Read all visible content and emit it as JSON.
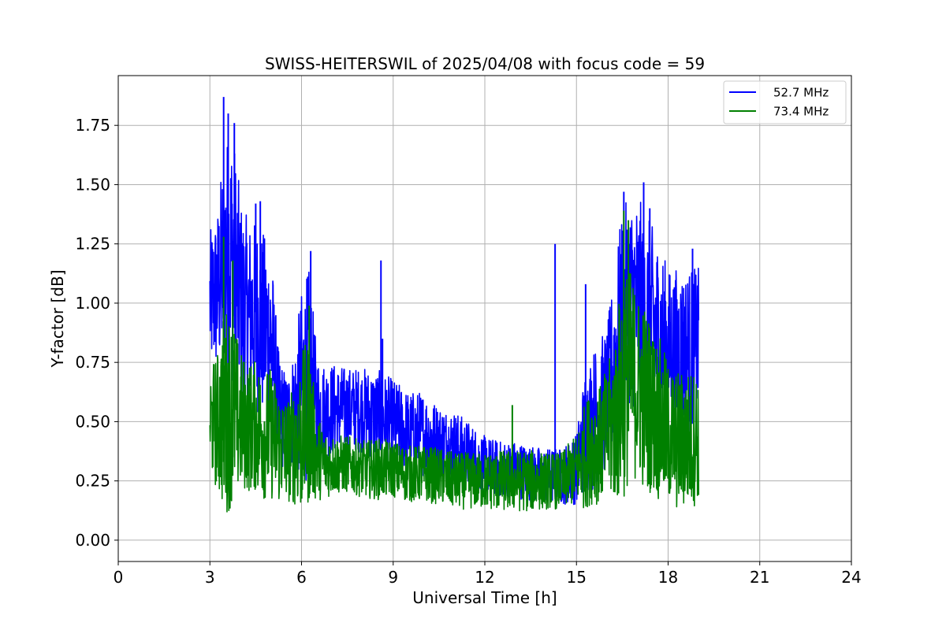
{
  "chart_data": {
    "type": "line",
    "title": "SWISS-HEITERSWIL of 2025/04/08 with focus code = 59",
    "xlabel": "Universal Time [h]",
    "ylabel": "Y-factor [dB]",
    "xlim": [
      0,
      24
    ],
    "ylim": [
      -0.09,
      1.96
    ],
    "xticks": [
      0,
      3,
      6,
      9,
      12,
      15,
      18,
      21,
      24
    ],
    "xtick_labels": [
      "0",
      "3",
      "6",
      "9",
      "12",
      "15",
      "18",
      "21",
      "24"
    ],
    "yticks": [
      0.0,
      0.25,
      0.5,
      0.75,
      1.0,
      1.25,
      1.5,
      1.75
    ],
    "ytick_labels": [
      "0.00",
      "0.25",
      "0.50",
      "0.75",
      "1.00",
      "1.25",
      "1.50",
      "1.75"
    ],
    "grid": true,
    "legend_position": "top-right",
    "series": [
      {
        "name": "52.7 MHz",
        "color": "#0000ff",
        "x": [
          3.0,
          3.25,
          3.5,
          3.75,
          4.0,
          4.25,
          4.5,
          4.75,
          5.0,
          5.25,
          5.5,
          5.75,
          6.0,
          6.25,
          6.5,
          6.75,
          7.0,
          7.5,
          8.0,
          8.5,
          9.0,
          9.5,
          10.0,
          10.5,
          11.0,
          11.5,
          12.0,
          12.5,
          13.0,
          13.5,
          14.0,
          14.5,
          15.0,
          15.25,
          15.5,
          15.75,
          16.0,
          16.25,
          16.5,
          16.75,
          17.0,
          17.25,
          17.5,
          17.75,
          18.0,
          18.25,
          18.5,
          18.75,
          19.0
        ],
        "center": [
          1.0,
          1.05,
          1.2,
          1.2,
          1.0,
          0.95,
          0.95,
          0.9,
          0.85,
          0.55,
          0.5,
          0.55,
          0.65,
          0.7,
          0.55,
          0.55,
          0.55,
          0.55,
          0.55,
          0.52,
          0.5,
          0.45,
          0.45,
          0.42,
          0.4,
          0.35,
          0.32,
          0.3,
          0.3,
          0.28,
          0.27,
          0.27,
          0.3,
          0.45,
          0.5,
          0.55,
          0.6,
          0.75,
          0.95,
          1.0,
          1.0,
          0.95,
          0.9,
          0.85,
          0.8,
          0.8,
          0.8,
          0.8,
          0.85
        ],
        "spread": [
          0.3,
          0.35,
          0.5,
          0.55,
          0.45,
          0.4,
          0.4,
          0.4,
          0.4,
          0.25,
          0.2,
          0.25,
          0.4,
          0.45,
          0.25,
          0.2,
          0.2,
          0.18,
          0.18,
          0.2,
          0.18,
          0.18,
          0.18,
          0.15,
          0.15,
          0.15,
          0.12,
          0.12,
          0.12,
          0.12,
          0.12,
          0.12,
          0.15,
          0.25,
          0.3,
          0.3,
          0.3,
          0.4,
          0.45,
          0.45,
          0.45,
          0.45,
          0.42,
          0.4,
          0.35,
          0.35,
          0.35,
          0.35,
          0.3
        ],
        "spikes": [
          [
            3.45,
            1.87
          ],
          [
            3.6,
            1.8
          ],
          [
            3.8,
            1.76
          ],
          [
            4.5,
            1.42
          ],
          [
            4.65,
            1.43
          ],
          [
            6.3,
            1.22
          ],
          [
            8.6,
            1.18
          ],
          [
            8.65,
            0.85
          ],
          [
            14.3,
            1.25
          ],
          [
            15.3,
            1.08
          ],
          [
            16.55,
            1.47
          ],
          [
            17.2,
            1.51
          ],
          [
            17.4,
            1.4
          ],
          [
            18.8,
            1.23
          ]
        ]
      },
      {
        "name": "73.4 MHz",
        "color": "#008000",
        "x": [
          3.0,
          3.25,
          3.5,
          3.75,
          4.0,
          4.25,
          4.5,
          4.75,
          5.0,
          5.25,
          5.5,
          5.75,
          6.0,
          6.25,
          6.5,
          6.75,
          7.0,
          7.5,
          8.0,
          8.5,
          9.0,
          9.5,
          10.0,
          10.5,
          11.0,
          11.5,
          12.0,
          12.5,
          13.0,
          13.5,
          14.0,
          14.5,
          15.0,
          15.25,
          15.5,
          15.75,
          16.0,
          16.25,
          16.5,
          16.75,
          17.0,
          17.25,
          17.5,
          17.75,
          18.0,
          18.25,
          18.5,
          18.75,
          19.0
        ],
        "center": [
          0.5,
          0.5,
          0.55,
          0.55,
          0.5,
          0.48,
          0.48,
          0.45,
          0.45,
          0.4,
          0.38,
          0.4,
          0.45,
          0.5,
          0.35,
          0.32,
          0.32,
          0.32,
          0.3,
          0.3,
          0.3,
          0.28,
          0.28,
          0.27,
          0.25,
          0.25,
          0.25,
          0.25,
          0.25,
          0.25,
          0.25,
          0.25,
          0.3,
          0.35,
          0.4,
          0.4,
          0.45,
          0.5,
          0.65,
          0.7,
          0.65,
          0.6,
          0.55,
          0.5,
          0.45,
          0.42,
          0.42,
          0.42,
          0.45
        ],
        "spread": [
          0.22,
          0.3,
          0.45,
          0.4,
          0.3,
          0.28,
          0.28,
          0.28,
          0.28,
          0.25,
          0.22,
          0.25,
          0.35,
          0.35,
          0.18,
          0.15,
          0.13,
          0.12,
          0.12,
          0.13,
          0.12,
          0.12,
          0.12,
          0.12,
          0.12,
          0.12,
          0.12,
          0.13,
          0.13,
          0.13,
          0.12,
          0.12,
          0.15,
          0.22,
          0.25,
          0.25,
          0.28,
          0.35,
          0.5,
          0.45,
          0.4,
          0.4,
          0.35,
          0.35,
          0.3,
          0.3,
          0.3,
          0.3,
          0.28
        ],
        "spikes": [
          [
            3.45,
            1.28
          ],
          [
            3.75,
            1.18
          ],
          [
            6.25,
            0.99
          ],
          [
            12.9,
            0.57
          ],
          [
            16.55,
            1.39
          ],
          [
            16.7,
            1.35
          ]
        ]
      }
    ]
  }
}
